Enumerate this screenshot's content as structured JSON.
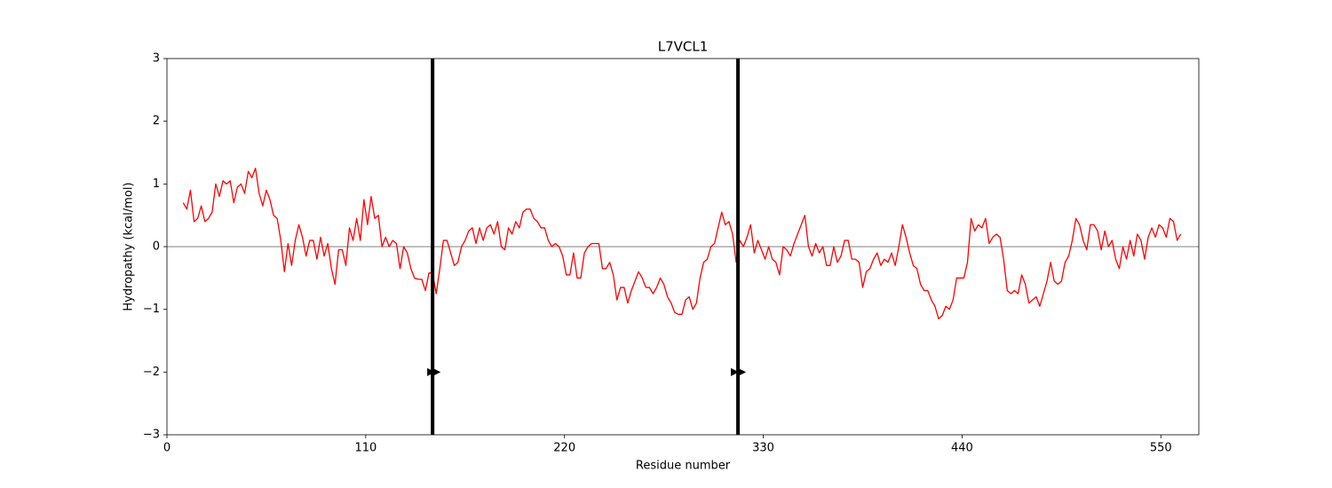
{
  "chart_data": {
    "type": "line",
    "title": "L7VCL1",
    "xlabel": "Residue number",
    "ylabel": "Hydropathy (kcal/mol)",
    "x": [
      9,
      11,
      13,
      15,
      17,
      19,
      21,
      23,
      25,
      27,
      29,
      31,
      33,
      35,
      37,
      39,
      41,
      43,
      45,
      47,
      49,
      51,
      53,
      55,
      57,
      59,
      61,
      63,
      65,
      67,
      69,
      71,
      73,
      75,
      77,
      79,
      81,
      83,
      85,
      87,
      89,
      91,
      93,
      95,
      97,
      99,
      101,
      103,
      105,
      107,
      109,
      111,
      113,
      115,
      117,
      119,
      121,
      123,
      125,
      127,
      129,
      131,
      133,
      135,
      137,
      139,
      141,
      143,
      145,
      147,
      149,
      151,
      153,
      155,
      157,
      159,
      161,
      163,
      165,
      167,
      169,
      171,
      173,
      175,
      177,
      179,
      181,
      183,
      185,
      187,
      189,
      191,
      193,
      195,
      197,
      199,
      201,
      203,
      205,
      207,
      209,
      211,
      213,
      215,
      217,
      219,
      221,
      223,
      225,
      227,
      229,
      231,
      233,
      235,
      237,
      239,
      241,
      243,
      245,
      247,
      249,
      251,
      253,
      255,
      257,
      259,
      261,
      263,
      265,
      267,
      269,
      271,
      273,
      275,
      277,
      279,
      281,
      283,
      285,
      287,
      289,
      291,
      293,
      295,
      297,
      299,
      301,
      303,
      305,
      307,
      309,
      311,
      313,
      315,
      317,
      319,
      321,
      323,
      325,
      327,
      329,
      331,
      333,
      335,
      337,
      339,
      341,
      343,
      345,
      347,
      349,
      351,
      353,
      355,
      357,
      359,
      361,
      363,
      365,
      367,
      369,
      371,
      373,
      375,
      377,
      379,
      381,
      383,
      385,
      387,
      389,
      391,
      393,
      395,
      397,
      399,
      401,
      403,
      405,
      407,
      409,
      411,
      413,
      415,
      417,
      419,
      421,
      423,
      425,
      427,
      429,
      431,
      433,
      435,
      437,
      439,
      441,
      443,
      445,
      447,
      449,
      451,
      453,
      455,
      457,
      459,
      461,
      463,
      465,
      467,
      469,
      471,
      473,
      475,
      477,
      479,
      481,
      483,
      485,
      487,
      489,
      491,
      493,
      495,
      497,
      499,
      501,
      503,
      505,
      507,
      509,
      511,
      513,
      515,
      517,
      519,
      521,
      523,
      525,
      527,
      529,
      531,
      533,
      535,
      537,
      539,
      541,
      543,
      545,
      547,
      549,
      551,
      553,
      555,
      557,
      559,
      561
    ],
    "series": [
      {
        "color": "#ff0000",
        "values": [
          0.7,
          0.6,
          0.9,
          0.4,
          0.45,
          0.65,
          0.4,
          0.45,
          0.55,
          1.0,
          0.8,
          1.05,
          1.0,
          1.05,
          0.7,
          0.95,
          1.0,
          0.85,
          1.2,
          1.1,
          1.25,
          0.85,
          0.65,
          0.9,
          0.75,
          0.5,
          0.45,
          0.1,
          -0.4,
          0.05,
          -0.3,
          0.1,
          0.35,
          0.15,
          -0.15,
          0.1,
          0.1,
          -0.2,
          0.15,
          -0.15,
          0.05,
          -0.35,
          -0.6,
          -0.05,
          -0.05,
          -0.3,
          0.3,
          0.1,
          0.45,
          0.1,
          0.75,
          0.35,
          0.8,
          0.45,
          0.5,
          0.0,
          0.15,
          0.0,
          0.1,
          0.05,
          -0.35,
          0.0,
          -0.1,
          -0.35,
          -0.5,
          -0.52,
          -0.52,
          -0.7,
          -0.42,
          -0.42,
          -0.75,
          -0.35,
          0.1,
          0.1,
          -0.1,
          -0.3,
          -0.25,
          0.0,
          0.1,
          0.25,
          0.3,
          0.05,
          0.3,
          0.1,
          0.3,
          0.35,
          0.2,
          0.4,
          0.0,
          -0.05,
          0.3,
          0.2,
          0.4,
          0.3,
          0.55,
          0.6,
          0.6,
          0.45,
          0.4,
          0.3,
          0.3,
          0.1,
          0.0,
          0.05,
          0.0,
          -0.15,
          -0.45,
          -0.45,
          -0.1,
          -0.5,
          -0.5,
          -0.1,
          0.0,
          0.05,
          0.05,
          0.05,
          -0.35,
          -0.35,
          -0.25,
          -0.45,
          -0.85,
          -0.65,
          -0.65,
          -0.9,
          -0.7,
          -0.55,
          -0.4,
          -0.5,
          -0.65,
          -0.65,
          -0.75,
          -0.65,
          -0.5,
          -0.6,
          -0.8,
          -0.9,
          -1.05,
          -1.08,
          -1.08,
          -0.85,
          -0.8,
          -1.0,
          -0.9,
          -0.5,
          -0.25,
          -0.2,
          0.0,
          0.05,
          0.3,
          0.55,
          0.35,
          0.4,
          0.2,
          -0.25,
          0.1,
          0.0,
          0.15,
          0.35,
          -0.1,
          0.1,
          -0.05,
          -0.2,
          0.0,
          -0.2,
          -0.25,
          -0.45,
          0.0,
          -0.05,
          -0.15,
          0.05,
          0.2,
          0.35,
          0.5,
          0.0,
          -0.15,
          0.05,
          -0.1,
          0.0,
          -0.3,
          -0.3,
          0.0,
          -0.25,
          -0.15,
          0.1,
          0.1,
          -0.2,
          -0.2,
          -0.25,
          -0.65,
          -0.4,
          -0.35,
          -0.2,
          -0.1,
          -0.3,
          -0.2,
          -0.25,
          -0.1,
          -0.3,
          0.0,
          0.35,
          0.15,
          -0.1,
          -0.3,
          -0.35,
          -0.6,
          -0.7,
          -0.7,
          -0.85,
          -0.95,
          -1.15,
          -1.1,
          -0.95,
          -1.0,
          -0.85,
          -0.5,
          -0.5,
          -0.5,
          -0.25,
          0.45,
          0.25,
          0.35,
          0.3,
          0.45,
          0.05,
          0.15,
          0.2,
          0.15,
          -0.2,
          -0.7,
          -0.75,
          -0.7,
          -0.75,
          -0.45,
          -0.6,
          -0.9,
          -0.85,
          -0.8,
          -0.95,
          -0.75,
          -0.55,
          -0.25,
          -0.55,
          -0.6,
          -0.55,
          -0.25,
          -0.15,
          0.1,
          0.45,
          0.35,
          0.1,
          -0.05,
          0.35,
          0.35,
          0.25,
          -0.05,
          0.25,
          0.0,
          0.1,
          -0.2,
          -0.35,
          0.0,
          -0.2,
          0.1,
          -0.15,
          0.2,
          0.1,
          -0.2,
          0.15,
          0.3,
          0.15,
          0.35,
          0.3,
          0.15,
          0.45,
          0.4,
          0.1,
          0.2
        ]
      }
    ],
    "xlim": [
      0,
      571
    ],
    "ylim": [
      -3,
      3
    ],
    "xticks": [
      0,
      110,
      220,
      330,
      440,
      550
    ],
    "yticks": [
      {
        "value": -3,
        "label": "−3"
      },
      {
        "value": -2,
        "label": "−2"
      },
      {
        "value": -1,
        "label": "−1"
      },
      0,
      1,
      2,
      3
    ],
    "hline": 0,
    "vlines": [
      147,
      316
    ],
    "markers": {
      "x": [
        146,
        149,
        314,
        318
      ],
      "y": [
        -2,
        -2,
        -2,
        -2
      ]
    }
  }
}
